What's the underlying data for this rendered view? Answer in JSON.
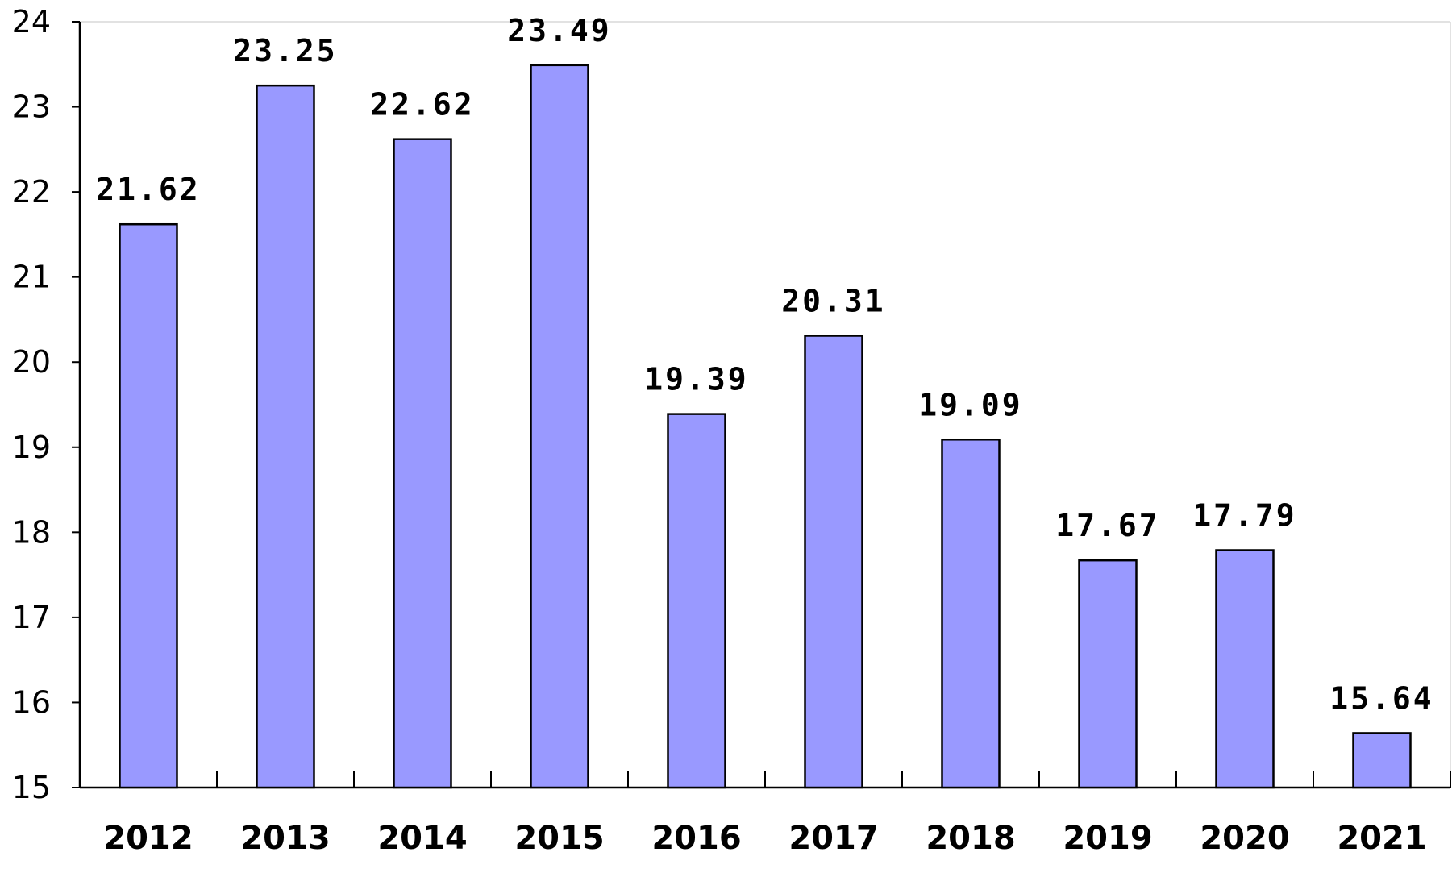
{
  "chart_data": {
    "type": "bar",
    "categories": [
      "2012",
      "2013",
      "2014",
      "2015",
      "2016",
      "2017",
      "2018",
      "2019",
      "2020",
      "2021"
    ],
    "values": [
      21.62,
      23.25,
      22.62,
      23.49,
      19.39,
      20.31,
      19.09,
      17.67,
      17.79,
      15.64
    ],
    "data_labels": [
      "21.62",
      "23.25",
      "22.62",
      "23.49",
      "19.39",
      "20.31",
      "19.09",
      "17.67",
      "17.79",
      "15.64"
    ],
    "yticks": [
      "15",
      "16",
      "17",
      "18",
      "19",
      "20",
      "21",
      "22",
      "23",
      "24"
    ],
    "ylim": [
      15,
      24
    ],
    "title": "",
    "xlabel": "",
    "ylabel": "",
    "grid": false,
    "legend": "none",
    "bar_color": "#9999ff",
    "bar_edge_color": "#000000"
  }
}
